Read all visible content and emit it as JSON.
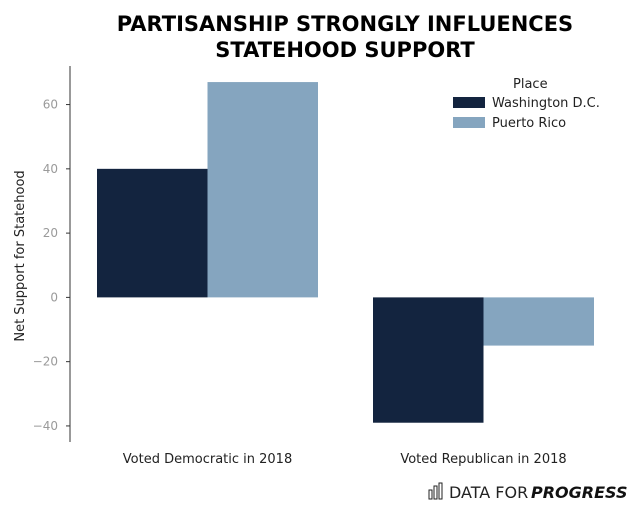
{
  "chart_data": {
    "type": "bar",
    "title_lines": [
      "PARTISANSHIP STRONGLY INFLUENCES",
      "STATEHOOD SUPPORT"
    ],
    "xlabel": "",
    "ylabel": "Net Support for Statehood",
    "categories": [
      "Voted Democratic in 2018",
      "Voted Republican in 2018"
    ],
    "series": [
      {
        "name": "Washington D.C.",
        "color": "#13243f",
        "values": [
          40,
          -39
        ]
      },
      {
        "name": "Puerto Rico",
        "color": "#85a5bf",
        "values": [
          67,
          -15
        ]
      }
    ],
    "yticks": [
      60,
      40,
      20,
      0,
      -20,
      -40
    ],
    "ytick_labels": [
      "60",
      "40",
      "20",
      "0",
      "−20",
      "−40"
    ],
    "ylim": [
      -45,
      72
    ],
    "grid": false,
    "legend": {
      "title": "Place",
      "placement": "top-right"
    }
  },
  "brand": {
    "light": "DATA FOR",
    "bold": "PROGRESS",
    "icon": "bar-chart-logo-icon"
  }
}
